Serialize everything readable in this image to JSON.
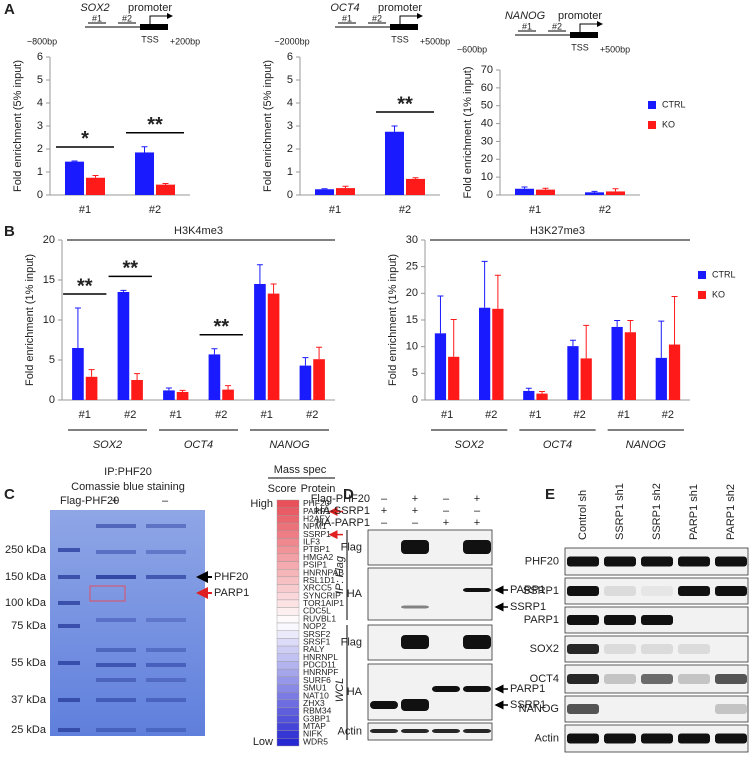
{
  "panel_labels": [
    "A",
    "B",
    "C",
    "D",
    "E"
  ],
  "chart_data": [
    {
      "type": "bar",
      "gene": "SOX2",
      "diagram": {
        "promoter": "promoter",
        "sites": [
          "#1",
          "#2"
        ],
        "tss": "TSS",
        "range": [
          "−800bp",
          "+200bp"
        ]
      },
      "y_label": "Fold enrichment (5% input)",
      "categories": [
        "#1",
        "#2"
      ],
      "series": [
        {
          "name": "CTRL",
          "color": "#1a1aff",
          "values": [
            1.45,
            1.85
          ],
          "errors": [
            0.03,
            0.25
          ]
        },
        {
          "name": "KO",
          "color": "#ff1a1a",
          "values": [
            0.75,
            0.45
          ],
          "errors": [
            0.1,
            0.05
          ]
        }
      ],
      "annotations": [
        "*",
        "**"
      ],
      "ylim": [
        0,
        6
      ],
      "yticks": [
        0,
        1,
        2,
        3,
        4,
        5,
        6
      ]
    },
    {
      "type": "bar",
      "gene": "OCT4",
      "diagram": {
        "promoter": "promoter",
        "sites": [
          "#1",
          "#2"
        ],
        "tss": "TSS",
        "range": [
          "−2000bp",
          "+500bp"
        ]
      },
      "y_label": "Fold enrichment (5% input)",
      "categories": [
        "#1",
        "#2"
      ],
      "series": [
        {
          "name": "CTRL",
          "color": "#1a1aff",
          "values": [
            0.25,
            2.75
          ],
          "errors": [
            0.02,
            0.25
          ]
        },
        {
          "name": "KO",
          "color": "#ff1a1a",
          "values": [
            0.3,
            0.7
          ],
          "errors": [
            0.08,
            0.05
          ]
        }
      ],
      "annotations": [
        "**"
      ],
      "ylim": [
        0,
        6
      ],
      "yticks": [
        0,
        1,
        2,
        3,
        4,
        5,
        6
      ]
    },
    {
      "type": "bar",
      "gene": "NANOG",
      "diagram": {
        "promoter": "promoter",
        "sites": [
          "#1",
          "#2"
        ],
        "tss": "TSS",
        "range": [
          "−600bp",
          "+500bp"
        ]
      },
      "y_label": "Fold enrichment (1% input)",
      "categories": [
        "#1",
        "#2"
      ],
      "series": [
        {
          "name": "CTRL",
          "color": "#1a1aff",
          "values": [
            3.5,
            1.5
          ],
          "errors": [
            1,
            0.5
          ]
        },
        {
          "name": "KO",
          "color": "#ff1a1a",
          "values": [
            3,
            2
          ],
          "errors": [
            0.8,
            1.5
          ]
        }
      ],
      "legend": "right",
      "ylim": [
        0,
        70
      ],
      "yticks": [
        0,
        10,
        20,
        30,
        40,
        50,
        60,
        70
      ]
    },
    {
      "type": "bar",
      "title": "H3K4me3",
      "y_label": "Fold enrichment (1% input)",
      "categories": [
        "#1",
        "#2",
        "#1",
        "#2",
        "#1",
        "#2"
      ],
      "groups": [
        "SOX2",
        "OCT4",
        "NANOG"
      ],
      "series": [
        {
          "name": "CTRL",
          "color": "#1a1aff",
          "values": [
            6.5,
            13.5,
            1.2,
            5.7,
            14.5,
            4.3
          ],
          "errors": [
            5,
            0.2,
            0.3,
            0.7,
            2.4,
            1
          ]
        },
        {
          "name": "KO",
          "color": "#ff1a1a",
          "values": [
            2.9,
            2.5,
            1.0,
            1.3,
            13.3,
            5.1
          ],
          "errors": [
            0.9,
            0.8,
            0.2,
            0.5,
            1.2,
            1.5
          ]
        }
      ],
      "annotations": [
        "**",
        "**",
        "**"
      ],
      "ylim": [
        0,
        20
      ],
      "yticks": [
        0,
        5,
        10,
        15,
        20
      ]
    },
    {
      "type": "bar",
      "title": "H3K27me3",
      "y_label": "Fold enrichment (1% input)",
      "categories": [
        "#1",
        "#2",
        "#1",
        "#2",
        "#1",
        "#2"
      ],
      "groups": [
        "SOX2",
        "OCT4",
        "NANOG"
      ],
      "series": [
        {
          "name": "CTRL",
          "color": "#1a1aff",
          "values": [
            12.5,
            17.3,
            1.7,
            10.1,
            13.7,
            7.9
          ],
          "errors": [
            7,
            8.7,
            0.5,
            1.1,
            1.2,
            6.9
          ]
        },
        {
          "name": "KO",
          "color": "#ff1a1a",
          "values": [
            8.1,
            17.1,
            1.2,
            7.8,
            12.7,
            10.4
          ],
          "errors": [
            7,
            6.3,
            0.4,
            6.2,
            2.2,
            9
          ]
        }
      ],
      "legend": "right",
      "ylim": [
        0,
        30
      ],
      "yticks": [
        0,
        5,
        10,
        15,
        20,
        25,
        30
      ]
    }
  ],
  "panel_c": {
    "title": "IP:PHF20",
    "subtitle": "Comassie blue staining",
    "condition": "Flag-PHF20",
    "lanes": [
      "+",
      "–"
    ],
    "markers": [
      "250 kDa",
      "150 kDa",
      "100 kDa",
      "75 kDa",
      "55 kDa",
      "37 kDa",
      "25 kDa"
    ],
    "bands": [
      "PHF20",
      "PARP1"
    ],
    "mass_spec": {
      "title": "Mass spec",
      "score": "Score",
      "protein": "Protein",
      "high": "High",
      "low": "Low",
      "proteins": [
        "PHF20",
        "PARP1",
        "H2AFY",
        "NPM1",
        "SSRP1",
        "ILF3",
        "PTBP1",
        "HMGA2",
        "PSIP1",
        "HNRNPAB",
        "RSL1D1",
        "XRCC5",
        "SYNCRIP",
        "TOR1AIP1",
        "CDC5L",
        "RUVBL1",
        "NOP2",
        "SRSF2",
        "SRSF1",
        "RALY",
        "HNRNPL",
        "PDCD11",
        "HNRNPF",
        "SURF6",
        "SMU1",
        "NAT10",
        "ZHX3",
        "RBM34",
        "G3BP1",
        "MTAP",
        "NIFK",
        "WDR5"
      ]
    }
  },
  "panel_d": {
    "rows": [
      {
        "label": "Flag-PHF20",
        "signs": [
          "–",
          "+",
          "–",
          "+"
        ]
      },
      {
        "label": "HA-SSRP1",
        "signs": [
          "+",
          "+",
          "–",
          "–"
        ]
      },
      {
        "label": "HA-PARP1",
        "signs": [
          "–",
          "–",
          "+",
          "+"
        ]
      }
    ],
    "ip": "IP: Flag",
    "wcl": "WCL",
    "blots": [
      "Flag",
      "HA",
      "Flag",
      "HA",
      "Actin"
    ],
    "arrows": [
      "PARP1",
      "SSRP1",
      "PARP1",
      "SSRP1"
    ]
  },
  "panel_e": {
    "columns": [
      "Control sh",
      "SSRP1 sh1",
      "SSRP1 sh2",
      "PARP1 sh1",
      "PARP1 sh2"
    ],
    "rows": [
      "PHF20",
      "SSRP1",
      "PARP1",
      "SOX2",
      "OCT4",
      "NANOG",
      "Actin"
    ]
  }
}
